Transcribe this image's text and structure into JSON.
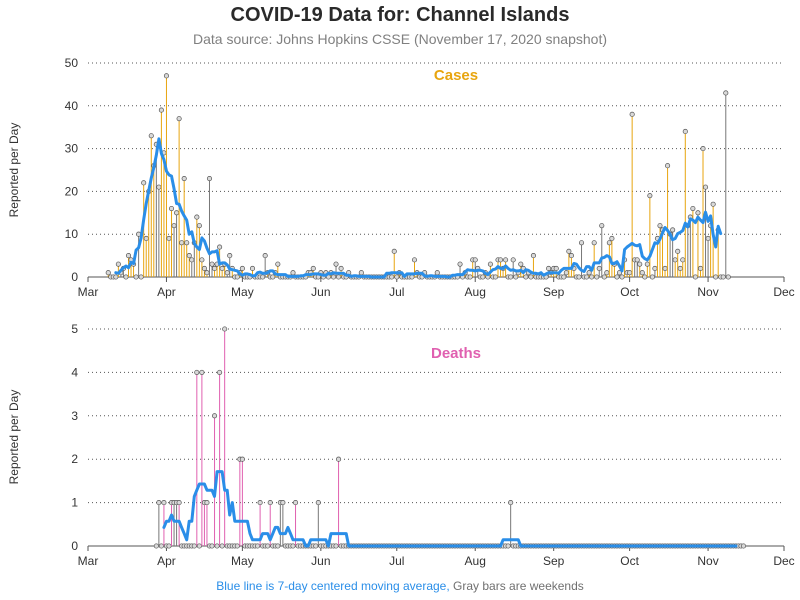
{
  "header": {
    "title": "COVID-19 Data for: Channel Islands",
    "subtitle": "Data source: Johns Hopkins CSSE (November 17, 2020 snapshot)"
  },
  "footnote": {
    "blue": "Blue line is 7-day centered moving average,",
    "gray": "Gray bars are weekends"
  },
  "colors": {
    "cases": "#E8A50F",
    "deaths": "#E060B0",
    "weekend": "#777777",
    "average": "#2A8EE8",
    "gridline": "#555555"
  },
  "chart_data": [
    {
      "type": "bar",
      "title": "Cases",
      "ylabel": "Reported per Day",
      "ylim": [
        0,
        50
      ],
      "yticks": [
        "0",
        "10",
        "20",
        "30",
        "40",
        "50"
      ],
      "xticks": [
        "Mar",
        "Apr",
        "May",
        "Jun",
        "Jul",
        "Aug",
        "Sep",
        "Oct",
        "Nov",
        "Dec"
      ],
      "grid": "horizontal dotted",
      "x_range": [
        "2020-03-01",
        "2020-12-01"
      ],
      "daily_values_start": "2020-03-09",
      "daily_values": [
        1,
        0,
        0,
        0,
        3,
        1,
        2,
        0,
        5,
        4,
        3,
        0,
        10,
        0,
        22,
        9,
        20,
        33,
        26,
        31,
        21,
        39,
        29,
        47,
        9,
        16,
        12,
        15,
        37,
        8,
        23,
        8,
        5,
        4,
        8,
        14,
        12,
        4,
        2,
        1,
        23,
        3,
        2,
        3,
        7,
        2,
        3,
        1,
        5,
        2,
        0,
        0,
        1,
        2,
        0,
        0,
        0,
        2,
        0,
        0,
        0,
        0,
        5,
        1,
        0,
        0,
        1,
        3,
        0,
        0,
        0,
        0,
        0,
        1,
        0,
        0,
        0,
        0,
        0,
        1,
        1,
        2,
        0,
        0,
        1,
        0,
        1,
        0,
        1,
        0,
        3,
        0,
        2,
        0,
        0,
        1,
        0,
        0,
        0,
        0,
        1,
        0,
        0,
        0,
        0,
        0,
        0,
        0,
        0,
        0,
        0,
        0,
        0,
        6,
        0,
        1,
        0,
        0,
        0,
        0,
        0,
        4,
        1,
        0,
        0,
        1,
        0,
        0,
        0,
        0,
        1,
        0,
        0,
        0,
        0,
        0,
        0,
        0,
        0,
        3,
        0,
        1,
        0,
        0,
        4,
        4,
        2,
        0,
        0,
        1,
        0,
        3,
        0,
        0,
        4,
        4,
        2,
        4,
        0,
        0,
        4,
        0,
        1,
        3,
        2,
        0,
        1,
        0,
        5,
        0,
        0,
        0,
        0,
        0,
        2,
        1,
        2,
        2,
        0,
        0,
        0,
        1,
        6,
        5,
        2,
        0,
        0,
        8,
        0,
        0,
        1,
        0,
        8,
        0,
        2,
        12,
        0,
        1,
        8,
        9,
        3,
        0,
        1,
        0,
        4,
        1,
        1,
        38,
        4,
        4,
        3,
        1,
        0,
        3,
        19,
        0,
        2,
        9,
        12,
        11,
        2,
        26,
        10,
        11,
        4,
        6,
        2,
        4,
        34,
        12,
        14,
        16,
        0,
        15,
        2,
        30,
        21,
        9,
        12,
        17,
        0,
        11,
        0,
        0,
        43,
        0
      ],
      "weekend_rule": "Saturday and Sunday bars are gray",
      "moving_average": "7-day centered moving average"
    },
    {
      "type": "bar",
      "title": "Deaths",
      "ylabel": "Reported per Day",
      "ylim": [
        0,
        5
      ],
      "yticks": [
        "0",
        "1",
        "2",
        "3",
        "4",
        "5"
      ],
      "xticks": [
        "Mar",
        "Apr",
        "May",
        "Jun",
        "Jul",
        "Aug",
        "Sep",
        "Oct",
        "Nov",
        "Dec"
      ],
      "grid": "horizontal dotted",
      "x_range": [
        "2020-03-01",
        "2020-12-01"
      ],
      "daily_values_start": "2020-03-28",
      "daily_values": [
        0,
        1,
        0,
        1,
        0,
        0,
        1,
        1,
        1,
        1,
        0,
        0,
        0,
        0,
        0,
        0,
        4,
        0,
        4,
        1,
        1,
        0,
        0,
        3,
        0,
        4,
        0,
        5,
        0,
        0,
        0,
        0,
        0,
        2,
        2,
        0,
        0,
        0,
        0,
        0,
        0,
        1,
        0,
        0,
        0,
        1,
        0,
        0,
        0,
        1,
        1,
        0,
        0,
        0,
        0,
        1,
        0,
        0,
        0,
        0,
        0,
        0,
        0,
        0,
        1,
        0,
        0,
        0,
        0,
        0,
        0,
        0,
        2,
        0,
        0,
        0,
        0,
        0,
        0,
        0,
        0,
        0,
        0,
        0,
        0,
        0,
        0,
        0,
        0,
        0,
        0,
        0,
        0,
        0,
        0,
        0,
        0,
        0,
        0,
        0,
        0,
        0,
        0,
        0,
        0,
        0,
        0,
        0,
        0,
        0,
        0,
        0,
        0,
        0,
        0,
        0,
        0,
        0,
        0,
        0,
        0,
        0,
        0,
        0,
        0,
        0,
        0,
        0,
        0,
        0,
        0,
        0,
        0,
        0,
        0,
        0,
        0,
        0,
        0,
        0,
        1,
        0,
        0,
        0,
        0,
        0,
        0,
        0,
        0,
        0,
        0,
        0,
        0,
        0,
        0,
        0,
        0,
        0,
        0,
        0,
        0,
        0,
        0,
        0,
        0,
        0,
        0,
        0,
        0,
        0,
        0,
        0,
        0,
        0,
        0,
        0,
        0,
        0,
        0,
        0,
        0,
        0,
        0,
        0,
        0,
        0,
        0,
        0,
        0,
        0,
        0,
        0,
        0,
        0,
        0,
        0,
        0,
        0,
        0,
        0,
        0,
        0,
        0,
        0,
        0,
        0,
        0,
        0,
        0,
        0,
        0,
        0,
        0,
        0,
        0,
        0,
        0,
        0,
        0,
        0,
        0,
        0,
        0,
        0,
        0,
        0,
        0,
        0,
        0,
        0,
        0,
        0,
        0
      ],
      "weekend_rule": "Saturday and Sunday bars are gray",
      "moving_average": "7-day centered moving average"
    }
  ]
}
